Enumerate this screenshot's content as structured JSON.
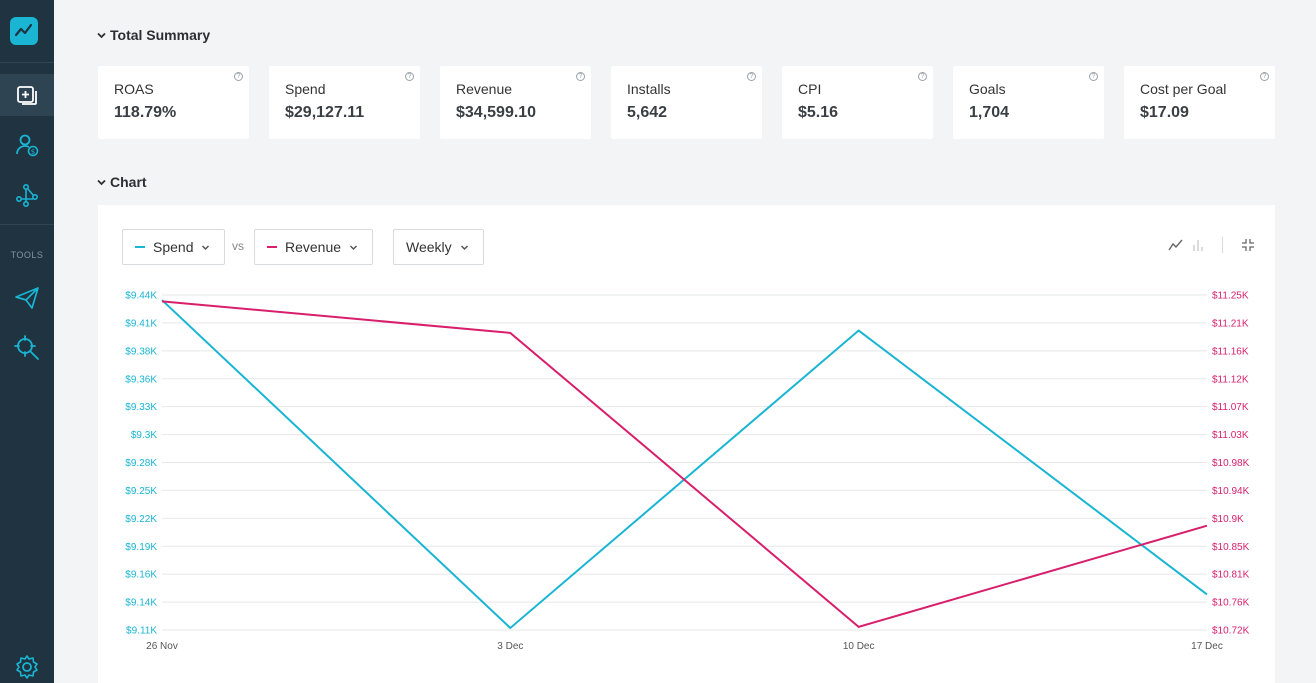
{
  "summary": {
    "title": "Total Summary",
    "cards": [
      {
        "label": "ROAS",
        "value": "118.79%"
      },
      {
        "label": "Spend",
        "value": "$29,127.11"
      },
      {
        "label": "Revenue",
        "value": "$34,599.10"
      },
      {
        "label": "Installs",
        "value": "5,642"
      },
      {
        "label": "CPI",
        "value": "$5.16"
      },
      {
        "label": "Goals",
        "value": "1,704"
      },
      {
        "label": "Cost per Goal",
        "value": "$17.09"
      }
    ]
  },
  "sidebar": {
    "tools_label": "TOOLS"
  },
  "chart_section": {
    "title": "Chart",
    "metric_a": "Spend",
    "vs_label": "vs",
    "metric_b": "Revenue",
    "period": "Weekly"
  },
  "colors": {
    "accent": "#19b5d3",
    "spend": "#19b5d3",
    "revenue": "#d81f6b",
    "sidebar": "#1f3340"
  },
  "chart_data": {
    "type": "line",
    "x": [
      "26 Nov",
      "3 Dec",
      "10 Dec",
      "17 Dec"
    ],
    "series": [
      {
        "name": "Spend",
        "axis": "left",
        "color": "#19b5d3",
        "values": [
          9435,
          9112,
          9405,
          9145
        ]
      },
      {
        "name": "Revenue",
        "axis": "right",
        "color": "#d81f6b",
        "values": [
          11240,
          11190,
          10725,
          10885
        ]
      }
    ],
    "y_left_ticks": [
      "$9.44K",
      "$9.41K",
      "$9.38K",
      "$9.36K",
      "$9.33K",
      "$9.3K",
      "$9.28K",
      "$9.25K",
      "$9.22K",
      "$9.19K",
      "$9.16K",
      "$9.14K",
      "$9.11K"
    ],
    "y_right_ticks": [
      "$11.25K",
      "$11.21K",
      "$11.16K",
      "$11.12K",
      "$11.07K",
      "$11.03K",
      "$10.98K",
      "$10.94K",
      "$10.9K",
      "$10.85K",
      "$10.81K",
      "$10.76K",
      "$10.72K"
    ],
    "y_left_range": [
      9110,
      9440
    ],
    "y_right_range": [
      10720,
      11250
    ],
    "grid": true
  }
}
